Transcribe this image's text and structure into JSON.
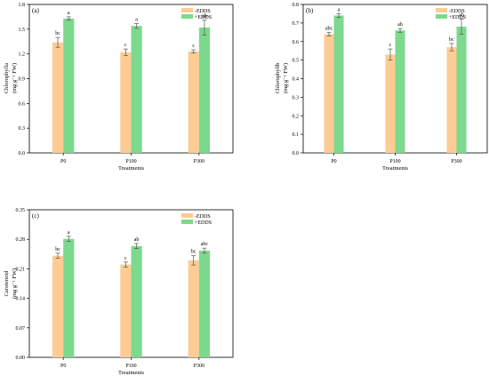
{
  "chart_data": [
    {
      "type": "bar",
      "panel_label": "(a)",
      "categories": [
        "P0",
        "P100",
        "P300"
      ],
      "xlabel": "Treatments",
      "ylabel_lines": [
        "Chlorophylla",
        "(mg g⁻¹ FW)"
      ],
      "ylim": [
        0,
        1.8
      ],
      "yticks": [
        "0.0",
        "0.3",
        "0.6",
        "0.9",
        "1.2",
        "1.5",
        "1.8"
      ],
      "series": [
        {
          "name": "-EDDS",
          "color": "#FCCC94",
          "values": [
            1.34,
            1.22,
            1.23
          ],
          "errors": [
            0.06,
            0.04,
            0.02
          ],
          "letters": [
            "bc",
            "c",
            "c"
          ]
        },
        {
          "name": "+EDDS",
          "color": "#7CD98E",
          "values": [
            1.63,
            1.54,
            1.52
          ],
          "errors": [
            0.02,
            0.03,
            0.09
          ],
          "letters": [
            "a",
            "a",
            "ab"
          ]
        }
      ],
      "legend_position": "top-right"
    },
    {
      "type": "bar",
      "panel_label": "(b)",
      "categories": [
        "P0",
        "P100",
        "P300"
      ],
      "xlabel": "Treatments",
      "ylabel_lines": [
        "Chlorophyllb",
        "(mg g⁻¹ FW)"
      ],
      "ylim": [
        0,
        0.8
      ],
      "yticks": [
        "0.0",
        "0.1",
        "0.2",
        "0.3",
        "0.4",
        "0.5",
        "0.6",
        "0.7",
        "0.8"
      ],
      "series": [
        {
          "name": "-EDDS",
          "color": "#FCCC94",
          "values": [
            0.64,
            0.53,
            0.57
          ],
          "errors": [
            0.01,
            0.03,
            0.02
          ],
          "letters": [
            "abc",
            "c",
            "bc"
          ]
        },
        {
          "name": "+EDDS",
          "color": "#7CD98E",
          "values": [
            0.74,
            0.66,
            0.68
          ],
          "errors": [
            0.01,
            0.01,
            0.04
          ],
          "letters": [
            "a",
            "ab",
            "ab"
          ]
        }
      ],
      "legend_position": "top-right"
    },
    {
      "type": "bar",
      "panel_label": "(c)",
      "categories": [
        "P0",
        "P100",
        "P300"
      ],
      "xlabel": "Treatments",
      "ylabel_lines": [
        "Carotenoid",
        "(mg g⁻¹ FW)"
      ],
      "ylim": [
        0,
        0.35
      ],
      "yticks": [
        "0.00",
        "0.07",
        "0.14",
        "0.21",
        "0.28",
        "0.35"
      ],
      "series": [
        {
          "name": "-EDDS",
          "color": "#FCCC94",
          "values": [
            0.241,
            0.22,
            0.23
          ],
          "errors": [
            0.006,
            0.006,
            0.011
          ],
          "letters": [
            "bc",
            "c",
            "bc"
          ]
        },
        {
          "name": "+EDDS",
          "color": "#7CD98E",
          "values": [
            0.281,
            0.264,
            0.253
          ],
          "errors": [
            0.006,
            0.006,
            0.006
          ],
          "letters": [
            "a",
            "ab",
            "abc"
          ]
        }
      ],
      "legend_position": "top-right"
    }
  ]
}
